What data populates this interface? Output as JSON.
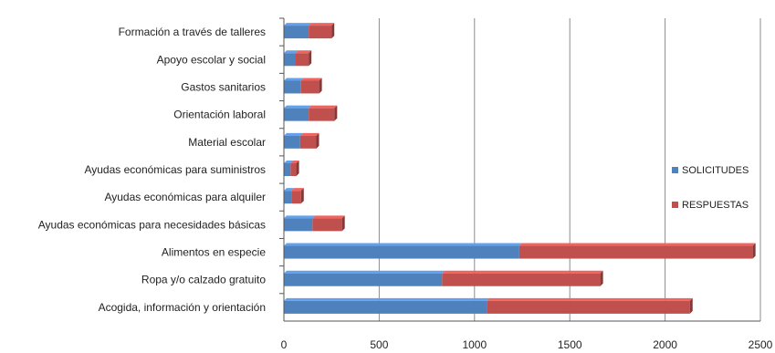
{
  "chart_data": {
    "type": "bar",
    "orientation": "horizontal",
    "stacked": true,
    "style": "3d",
    "categories": [
      "Formación a través de talleres",
      "Apoyo escolar y social",
      "Gastos sanitarios",
      "Orientación laboral",
      "Material escolar",
      "Ayudas económicas para suministros",
      "Ayudas económicas para alquiler",
      "Ayudas económicas para necesidades básicas",
      "Alimentos en especie",
      "Ropa y/o calzado gratuito",
      "Acogida, información y orientación"
    ],
    "series": [
      {
        "name": "SOLICITUDES",
        "color": "#4f81bd",
        "values": [
          130,
          60,
          90,
          130,
          85,
          35,
          40,
          150,
          1235,
          830,
          1065
        ]
      },
      {
        "name": "RESPUESTAS",
        "color": "#c0504d",
        "values": [
          120,
          70,
          95,
          135,
          85,
          30,
          50,
          155,
          1225,
          830,
          1065
        ]
      }
    ],
    "xlim": [
      0,
      2500
    ],
    "xticks": [
      0,
      500,
      1000,
      1500,
      2000,
      2500
    ],
    "title": "",
    "xlabel": "",
    "ylabel": "",
    "grid": "vertical",
    "legend_position": "right"
  }
}
